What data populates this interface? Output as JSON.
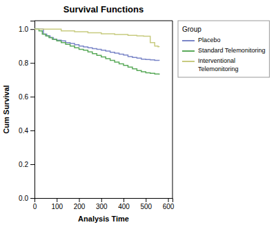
{
  "chart_data": {
    "type": "step",
    "title": "Survival Functions",
    "x_label": "Analysis Time",
    "y_label": "Cum Survival",
    "xlim": [
      0,
      620
    ],
    "ylim": [
      0.0,
      1.05
    ],
    "xticks": [
      0,
      100,
      200,
      300,
      400,
      500,
      600
    ],
    "yticks": [
      {
        "value": 0.0,
        "label": "0.0"
      },
      {
        "value": 0.2,
        "label": "0.2"
      },
      {
        "value": 0.4,
        "label": "0.4"
      },
      {
        "value": 0.6,
        "label": "0.6"
      },
      {
        "value": 0.8,
        "label": "0.8"
      },
      {
        "value": 1.0,
        "label": "1.0"
      }
    ],
    "legend": "right",
    "legend_title": "Group",
    "series": [
      {
        "name": "Placebo",
        "color": "#7b86c8",
        "x": [
          0,
          25,
          40,
          55,
          70,
          85,
          100,
          120,
          140,
          160,
          180,
          200,
          220,
          240,
          260,
          280,
          300,
          320,
          340,
          360,
          380,
          400,
          420,
          440,
          460,
          480,
          500,
          520,
          540,
          560
        ],
        "values": [
          1.0,
          1.0,
          0.97,
          0.96,
          0.95,
          0.94,
          0.935,
          0.93,
          0.92,
          0.915,
          0.908,
          0.9,
          0.895,
          0.89,
          0.885,
          0.88,
          0.875,
          0.87,
          0.863,
          0.858,
          0.852,
          0.847,
          0.838,
          0.832,
          0.828,
          0.822,
          0.82,
          0.818,
          0.815,
          0.813
        ]
      },
      {
        "name": "Standard Telemonitoring",
        "color": "#5aaa5a",
        "x": [
          0,
          20,
          35,
          50,
          65,
          80,
          100,
          120,
          140,
          160,
          180,
          200,
          220,
          240,
          260,
          280,
          300,
          320,
          340,
          360,
          380,
          400,
          420,
          440,
          460,
          480,
          500,
          520,
          540,
          560
        ],
        "values": [
          1.0,
          0.99,
          0.97,
          0.96,
          0.95,
          0.94,
          0.93,
          0.92,
          0.91,
          0.9,
          0.89,
          0.88,
          0.875,
          0.865,
          0.855,
          0.845,
          0.835,
          0.825,
          0.815,
          0.805,
          0.795,
          0.785,
          0.775,
          0.765,
          0.755,
          0.748,
          0.742,
          0.738,
          0.734,
          0.73
        ]
      },
      {
        "name": "Interventional\nTelemonitoring",
        "color": "#c8cb80",
        "x": [
          0,
          60,
          120,
          180,
          240,
          300,
          360,
          420,
          460,
          490,
          520,
          540,
          555,
          560
        ],
        "values": [
          1.0,
          1.0,
          0.99,
          0.985,
          0.978,
          0.972,
          0.968,
          0.963,
          0.96,
          0.958,
          0.92,
          0.9,
          0.896,
          0.895
        ]
      }
    ]
  }
}
